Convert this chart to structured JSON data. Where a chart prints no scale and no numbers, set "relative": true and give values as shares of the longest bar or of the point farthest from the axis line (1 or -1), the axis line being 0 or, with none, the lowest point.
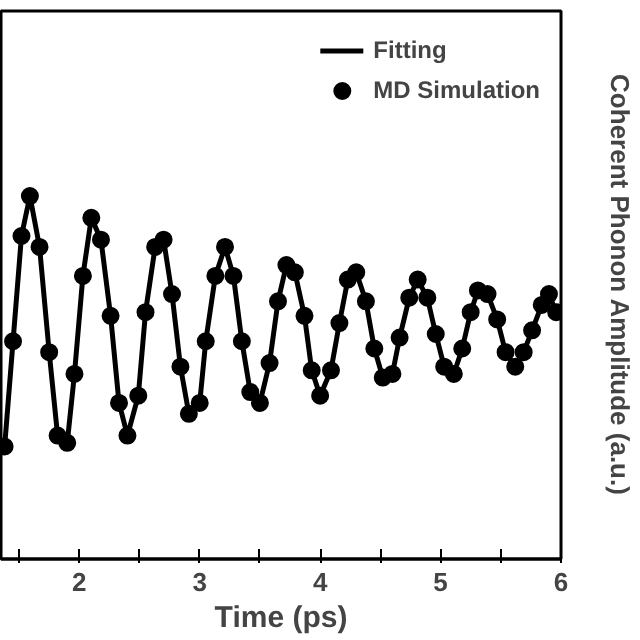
{
  "chart_data": {
    "type": "line",
    "xlabel": "Time (ps)",
    "ylabel": "Coherent Phonon Amplitude (a.u.)",
    "relative": true,
    "xlim": [
      1.35,
      6
    ],
    "xticks": [
      {
        "value": 1.5,
        "label": null
      },
      2,
      {
        "value": 2.5,
        "label": null
      },
      3,
      {
        "value": 3.5,
        "label": null
      },
      4,
      {
        "value": 4.5,
        "label": null
      },
      5,
      {
        "value": 5.5,
        "label": null
      },
      6
    ],
    "x": [
      1.38,
      1.45,
      1.52,
      1.59,
      1.67,
      1.75,
      1.82,
      1.9,
      1.96,
      2.03,
      2.1,
      2.18,
      2.26,
      2.33,
      2.4,
      2.49,
      2.55,
      2.63,
      2.7,
      2.77,
      2.84,
      2.91,
      3.0,
      3.05,
      3.13,
      3.21,
      3.28,
      3.35,
      3.42,
      3.5,
      3.58,
      3.65,
      3.72,
      3.79,
      3.87,
      3.93,
      4.0,
      4.09,
      4.16,
      4.23,
      4.3,
      4.38,
      4.45,
      4.52,
      4.6,
      4.66,
      4.74,
      4.81,
      4.89,
      4.96,
      5.03,
      5.11,
      5.18,
      5.25,
      5.31,
      5.39,
      5.47,
      5.54,
      5.62,
      5.69,
      5.76,
      5.84,
      5.9,
      5.96
    ],
    "series": [
      {
        "name": "Fitting",
        "type": "line",
        "color": "#000000",
        "line_style": "solid",
        "values": [
          0.31,
          0.6,
          0.89,
          1.0,
          0.86,
          0.57,
          0.34,
          0.32,
          0.51,
          0.78,
          0.94,
          0.88,
          0.67,
          0.43,
          0.34,
          0.45,
          0.68,
          0.86,
          0.88,
          0.73,
          0.53,
          0.4,
          0.43,
          0.6,
          0.78,
          0.86,
          0.78,
          0.6,
          0.46,
          0.43,
          0.54,
          0.71,
          0.81,
          0.79,
          0.67,
          0.52,
          0.45,
          0.52,
          0.65,
          0.77,
          0.79,
          0.71,
          0.58,
          0.5,
          0.51,
          0.61,
          0.72,
          0.77,
          0.72,
          0.62,
          0.53,
          0.51,
          0.58,
          0.68,
          0.74,
          0.73,
          0.66,
          0.57,
          0.53,
          0.57,
          0.63,
          0.7,
          0.73,
          0.68
        ]
      },
      {
        "name": "MD Simulation",
        "type": "scatter",
        "color": "#000000",
        "marker": "circle",
        "values": [
          0.31,
          0.6,
          0.89,
          1.0,
          0.86,
          0.57,
          0.34,
          0.32,
          0.51,
          0.78,
          0.94,
          0.88,
          0.67,
          0.43,
          0.34,
          0.45,
          0.68,
          0.86,
          0.88,
          0.73,
          0.53,
          0.4,
          0.43,
          0.6,
          0.78,
          0.86,
          0.78,
          0.6,
          0.46,
          0.43,
          0.54,
          0.71,
          0.81,
          0.79,
          0.67,
          0.52,
          0.45,
          0.52,
          0.65,
          0.77,
          0.79,
          0.71,
          0.58,
          0.5,
          0.51,
          0.61,
          0.72,
          0.77,
          0.72,
          0.62,
          0.53,
          0.51,
          0.58,
          0.68,
          0.74,
          0.73,
          0.66,
          0.57,
          0.53,
          0.57,
          0.63,
          0.7,
          0.73,
          0.68
        ]
      }
    ],
    "legend": "top right",
    "grid": false
  }
}
